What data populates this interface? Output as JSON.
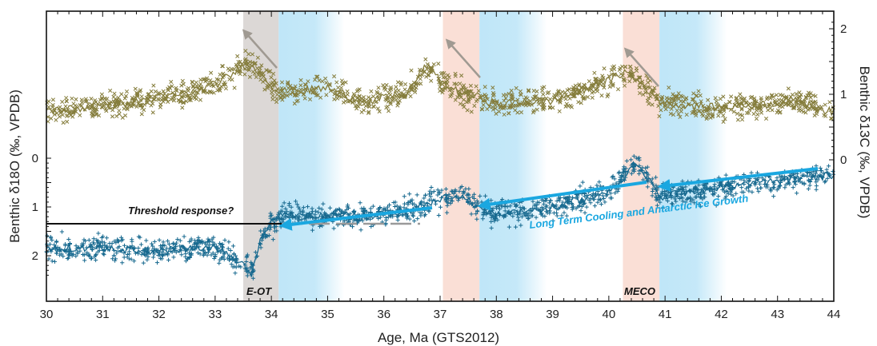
{
  "chart_data": {
    "type": "scatter",
    "xlabel": "Age, Ma (GTS2012)",
    "ylabel_left": "Benthic δ18O (‰, VPDB)",
    "ylabel_right": "Benthic δ13C (‰, VPDB)",
    "xlim": [
      30,
      44
    ],
    "x_ticks": [
      "30",
      "31",
      "32",
      "33",
      "34",
      "35",
      "36",
      "37",
      "38",
      "39",
      "40",
      "41",
      "42",
      "43",
      "44"
    ],
    "left_ticks": [
      "0",
      "1",
      "2"
    ],
    "right_ticks": [
      "2",
      "1",
      "0"
    ],
    "left_axis_reversed": true,
    "colors": {
      "d13c": "#857d3c",
      "d18o": "#17698f",
      "arrow_blue": "#1aa7e0",
      "grey_band": "#dcd8d6",
      "pink_band": "#fadfd6",
      "blue_band": "#bfe6f8",
      "grey_arrow": "#a09a92",
      "threshold_line": "#111111",
      "dashed_line": "#9a9a9a"
    },
    "bands": [
      {
        "type": "grey",
        "from": 33.5,
        "to": 34.13,
        "label": "E-OT"
      },
      {
        "type": "blue",
        "from": 34.13,
        "to": 35.3
      },
      {
        "type": "pink",
        "from": 37.05,
        "to": 37.7
      },
      {
        "type": "blue",
        "from": 37.7,
        "to": 38.9
      },
      {
        "type": "pink",
        "from": 40.25,
        "to": 40.9,
        "label": "MECO"
      },
      {
        "type": "blue",
        "from": 40.9,
        "to": 42.1
      }
    ],
    "annotations": {
      "threshold": "Threshold response?",
      "cooling": "Long Term Cooling and Antarctic Ice Growth",
      "eot": "E-OT",
      "meco": "MECO"
    },
    "series": [
      {
        "name": "Benthic δ13C",
        "axis": "right",
        "marker": "x",
        "trend": [
          [
            30.0,
            0.75
          ],
          [
            30.5,
            0.78
          ],
          [
            31.0,
            0.82
          ],
          [
            31.5,
            0.88
          ],
          [
            32.0,
            0.95
          ],
          [
            32.5,
            1.02
          ],
          [
            33.0,
            1.15
          ],
          [
            33.3,
            1.3
          ],
          [
            33.5,
            1.45
          ],
          [
            33.7,
            1.38
          ],
          [
            33.9,
            1.25
          ],
          [
            34.1,
            1.05
          ],
          [
            34.5,
            1.05
          ],
          [
            35.0,
            1.1
          ],
          [
            35.3,
            1.0
          ],
          [
            35.7,
            0.85
          ],
          [
            36.0,
            0.95
          ],
          [
            36.4,
            1.0
          ],
          [
            36.6,
            1.25
          ],
          [
            36.75,
            1.45
          ],
          [
            37.0,
            1.2
          ],
          [
            37.3,
            1.05
          ],
          [
            37.7,
            0.95
          ],
          [
            38.0,
            0.85
          ],
          [
            38.5,
            0.88
          ],
          [
            39.0,
            0.9
          ],
          [
            39.5,
            1.05
          ],
          [
            40.0,
            1.2
          ],
          [
            40.3,
            1.35
          ],
          [
            40.6,
            1.15
          ],
          [
            40.9,
            0.9
          ],
          [
            41.3,
            0.85
          ],
          [
            41.8,
            0.8
          ],
          [
            42.3,
            0.82
          ],
          [
            42.8,
            0.85
          ],
          [
            43.3,
            0.9
          ],
          [
            43.7,
            0.8
          ],
          [
            44.0,
            0.72
          ]
        ],
        "scatter_spread": 0.14
      },
      {
        "name": "Benthic δ18O",
        "axis": "left",
        "marker": "+",
        "trend": [
          [
            30.0,
            1.85
          ],
          [
            31.0,
            1.85
          ],
          [
            32.0,
            1.9
          ],
          [
            32.5,
            1.85
          ],
          [
            33.0,
            1.85
          ],
          [
            33.4,
            2.1
          ],
          [
            33.65,
            2.35
          ],
          [
            33.85,
            1.5
          ],
          [
            34.2,
            1.15
          ],
          [
            35.0,
            1.2
          ],
          [
            35.8,
            1.2
          ],
          [
            36.5,
            1.05
          ],
          [
            37.0,
            0.85
          ],
          [
            37.4,
            0.75
          ],
          [
            37.7,
            1.05
          ],
          [
            38.0,
            1.1
          ],
          [
            38.5,
            1.1
          ],
          [
            39.0,
            1.0
          ],
          [
            39.5,
            0.85
          ],
          [
            40.0,
            0.7
          ],
          [
            40.3,
            0.3
          ],
          [
            40.5,
            0.1
          ],
          [
            40.7,
            0.4
          ],
          [
            40.9,
            0.8
          ],
          [
            41.3,
            0.7
          ],
          [
            42.0,
            0.6
          ],
          [
            43.0,
            0.45
          ],
          [
            44.0,
            0.35
          ]
        ],
        "scatter_spread": 0.18
      }
    ]
  }
}
